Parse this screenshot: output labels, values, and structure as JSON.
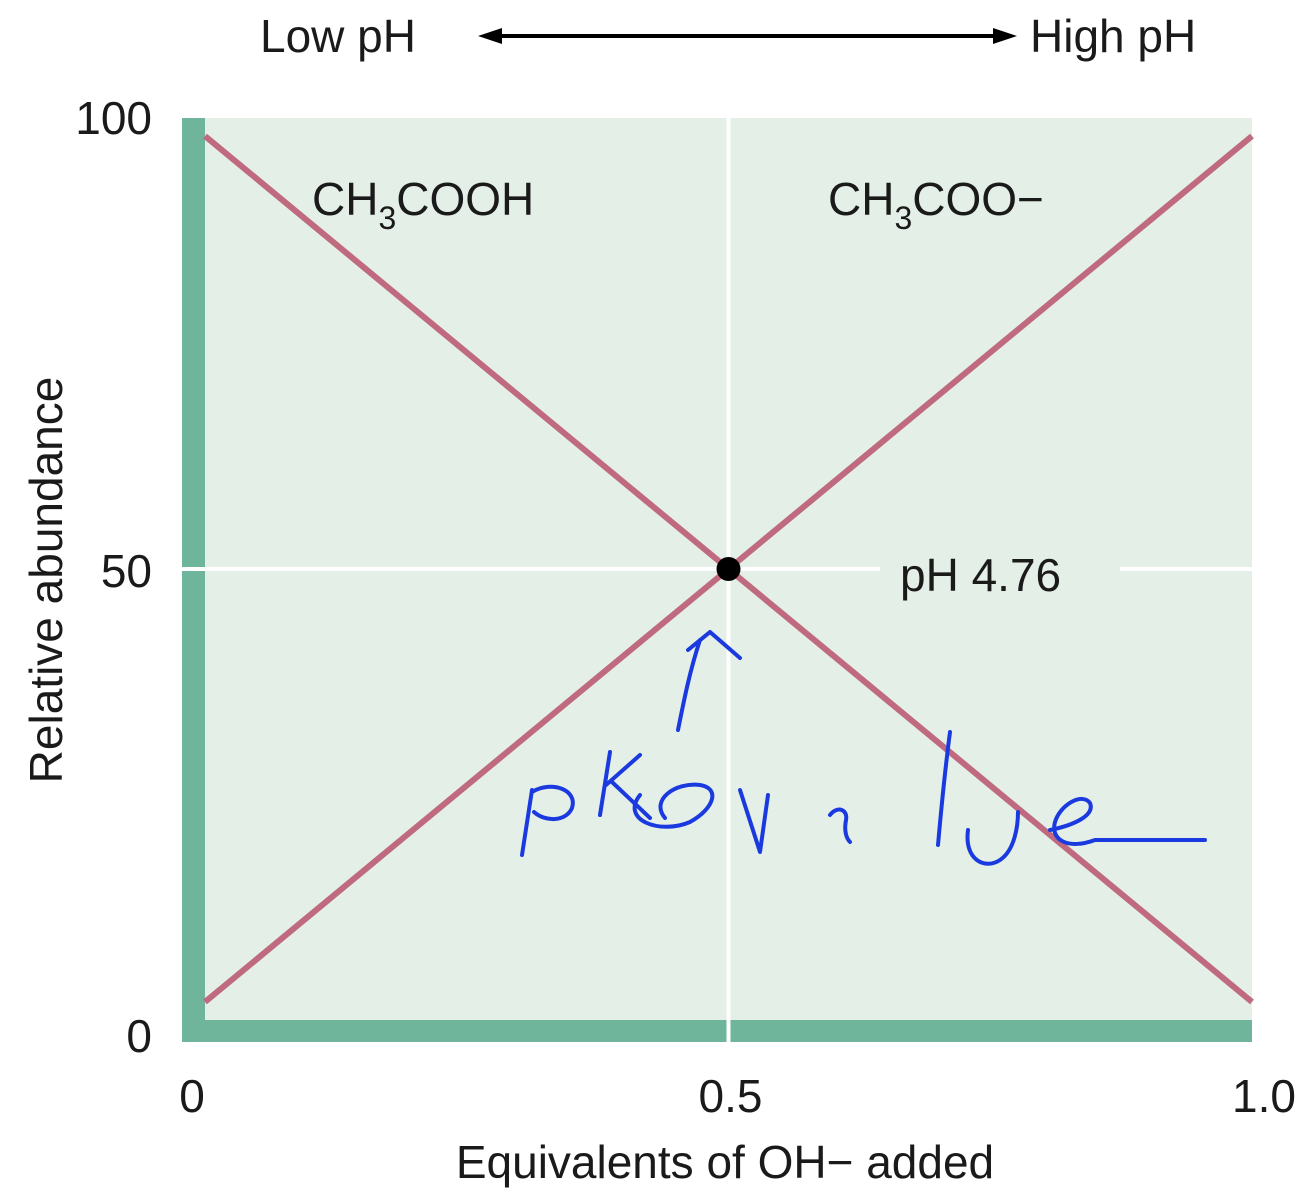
{
  "chart_data": {
    "type": "line",
    "title": "",
    "xlabel": "Equivalents of OH− added",
    "ylabel": "Relative abundance",
    "xlim": [
      0,
      1.0
    ],
    "ylim": [
      0,
      100
    ],
    "x_ticks": [
      "0",
      "0.5",
      "1.0"
    ],
    "y_ticks": [
      "0",
      "50",
      "100"
    ],
    "grid": "center lines at x = 0.5 and y = 50",
    "top_arrow": {
      "left": "Low pH",
      "right": "High pH"
    },
    "series": [
      {
        "name": "CH3COOH",
        "label_main": "CH",
        "label_sub": "3",
        "label_rest": "COOH",
        "x": [
          0,
          1.0
        ],
        "y": [
          98,
          2
        ]
      },
      {
        "name": "CH3COO−",
        "label_main": "CH",
        "label_sub": "3",
        "label_rest": "COO−",
        "x": [
          0,
          1.0
        ],
        "y": [
          2,
          98
        ]
      }
    ],
    "point": {
      "x": 0.5,
      "y": 50
    },
    "point_label": "pH 4.76",
    "handwritten_note": "pKa value",
    "colors": {
      "plot_bg": "#e4efe8",
      "axis_band": "#6eb59c",
      "line": "#c06a80",
      "grid": "#ffffff",
      "point": "#000000",
      "ink": "#1a3ae0"
    }
  }
}
